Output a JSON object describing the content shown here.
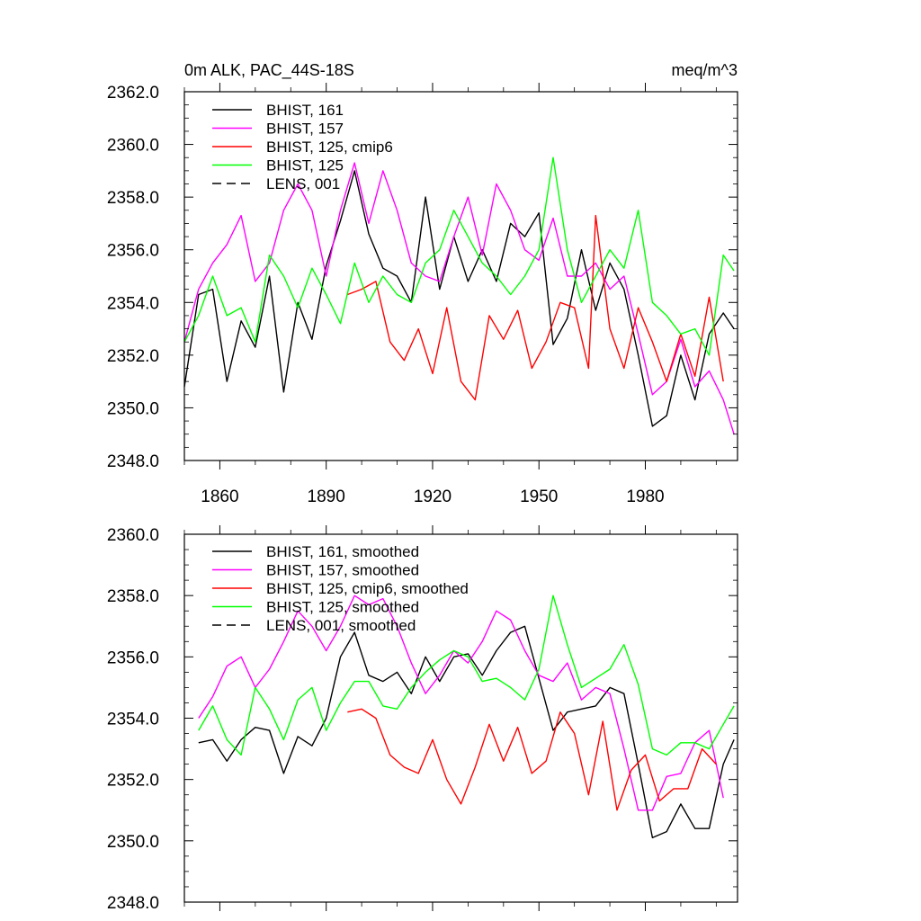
{
  "chart_data": [
    {
      "type": "line",
      "title": "0m ALK, PAC_44S-18S",
      "units_label": "meq/m^3",
      "xlabel": "",
      "ylabel": "",
      "xlim": [
        1850,
        2006
      ],
      "ylim": [
        2348.0,
        2362.0
      ],
      "xticks": [
        1860,
        1890,
        1920,
        1950,
        1980
      ],
      "xtick_labels": [
        "1860",
        "1890",
        "1920",
        "1950",
        "1980"
      ],
      "yticks": [
        2348.0,
        2350.0,
        2352.0,
        2354.0,
        2356.0,
        2358.0,
        2360.0,
        2362.0
      ],
      "ytick_labels": [
        "2348.0",
        "2350.0",
        "2352.0",
        "2354.0",
        "2356.0",
        "2358.0",
        "2360.0",
        "2362.0"
      ],
      "grid": false,
      "legend_position": "top-left",
      "series": [
        {
          "name": "BHIST, 161",
          "color": "#000000",
          "dash": "solid",
          "x": [
            1850,
            1854,
            1858,
            1862,
            1866,
            1870,
            1874,
            1878,
            1882,
            1886,
            1890,
            1894,
            1898,
            1902,
            1906,
            1910,
            1914,
            1918,
            1922,
            1926,
            1930,
            1934,
            1938,
            1942,
            1946,
            1950,
            1954,
            1958,
            1962,
            1966,
            1970,
            1974,
            1978,
            1982,
            1986,
            1990,
            1994,
            1998,
            2002,
            2005
          ],
          "values": [
            2350.8,
            2354.3,
            2354.5,
            2351.0,
            2353.3,
            2352.3,
            2355.0,
            2350.6,
            2354.0,
            2352.6,
            2355.4,
            2357.1,
            2359.0,
            2356.6,
            2355.3,
            2355.0,
            2354.0,
            2358.0,
            2354.5,
            2356.5,
            2354.8,
            2356.0,
            2354.8,
            2357.0,
            2356.5,
            2357.4,
            2352.4,
            2353.4,
            2356.0,
            2353.7,
            2355.5,
            2354.5,
            2352.0,
            2349.3,
            2349.7,
            2352.0,
            2350.3,
            2352.8,
            2353.6,
            2353.0
          ]
        },
        {
          "name": "BHIST, 157",
          "color": "#ff00ff",
          "dash": "solid",
          "x": [
            1850,
            1854,
            1858,
            1862,
            1866,
            1870,
            1874,
            1878,
            1882,
            1886,
            1890,
            1894,
            1898,
            1902,
            1906,
            1910,
            1914,
            1918,
            1922,
            1926,
            1930,
            1934,
            1938,
            1942,
            1946,
            1950,
            1954,
            1958,
            1962,
            1966,
            1970,
            1974,
            1978,
            1982,
            1986,
            1990,
            1994,
            1998,
            2002,
            2005
          ],
          "values": [
            2352.5,
            2354.5,
            2355.5,
            2356.2,
            2357.3,
            2354.8,
            2355.5,
            2357.5,
            2358.5,
            2357.5,
            2355.0,
            2357.5,
            2359.3,
            2357.0,
            2359.0,
            2357.5,
            2355.5,
            2355.0,
            2354.8,
            2356.5,
            2358.0,
            2355.8,
            2358.5,
            2357.5,
            2356.0,
            2355.6,
            2357.2,
            2355.0,
            2355.0,
            2355.5,
            2354.5,
            2355.0,
            2352.8,
            2350.5,
            2351.0,
            2352.6,
            2350.8,
            2351.4,
            2350.3,
            2349.0
          ]
        },
        {
          "name": "BHIST, 125, cmip6",
          "color": "#ff0000",
          "dash": "solid",
          "x": [
            1896,
            1900,
            1904,
            1908,
            1912,
            1916,
            1920,
            1924,
            1928,
            1932,
            1936,
            1940,
            1944,
            1948,
            1952,
            1956,
            1960,
            1964,
            1966,
            1970,
            1974,
            1978,
            1982,
            1986,
            1990,
            1994,
            1998,
            2002
          ],
          "values": [
            2354.3,
            2354.5,
            2354.8,
            2352.5,
            2351.8,
            2353.0,
            2351.3,
            2353.8,
            2351.0,
            2350.3,
            2353.5,
            2352.6,
            2353.7,
            2351.5,
            2352.5,
            2354.0,
            2353.8,
            2351.5,
            2357.3,
            2353.0,
            2351.5,
            2353.8,
            2352.5,
            2351.0,
            2352.8,
            2351.2,
            2354.2,
            2351.0
          ]
        },
        {
          "name": "BHIST, 125",
          "color": "#00ff00",
          "dash": "solid",
          "x": [
            1850,
            1854,
            1858,
            1862,
            1866,
            1870,
            1874,
            1878,
            1882,
            1886,
            1890,
            1894,
            1898,
            1902,
            1906,
            1910,
            1914,
            1918,
            1922,
            1926,
            1930,
            1934,
            1938,
            1942,
            1946,
            1950,
            1954,
            1958,
            1962,
            1966,
            1970,
            1974,
            1978,
            1982,
            1986,
            1990,
            1994,
            1998,
            2002,
            2005
          ],
          "values": [
            2352.5,
            2353.5,
            2355.0,
            2353.5,
            2353.8,
            2352.5,
            2355.8,
            2355.0,
            2353.8,
            2355.3,
            2354.3,
            2353.2,
            2355.5,
            2354.0,
            2355.0,
            2354.3,
            2354.0,
            2355.5,
            2356.0,
            2357.5,
            2356.5,
            2355.5,
            2355.0,
            2354.3,
            2355.0,
            2356.0,
            2359.5,
            2356.0,
            2354.0,
            2355.0,
            2356.0,
            2355.3,
            2357.5,
            2354.0,
            2353.5,
            2352.8,
            2353.0,
            2352.0,
            2355.8,
            2355.2
          ]
        },
        {
          "name": "LENS, 001",
          "color": "#000000",
          "dash": "dashed",
          "x": [],
          "values": []
        }
      ]
    },
    {
      "type": "line",
      "title": "",
      "xlabel": "",
      "ylabel": "",
      "xlim": [
        1850,
        2006
      ],
      "ylim": [
        2348.0,
        2360.0
      ],
      "xticks": [
        1860,
        1890,
        1920,
        1950,
        1980
      ],
      "xtick_labels": [],
      "yticks": [
        2348.0,
        2350.0,
        2352.0,
        2354.0,
        2356.0,
        2358.0,
        2360.0
      ],
      "ytick_labels": [
        "2348.0",
        "2350.0",
        "2352.0",
        "2354.0",
        "2356.0",
        "2358.0",
        "2360.0"
      ],
      "grid": false,
      "legend_position": "top-left",
      "series": [
        {
          "name": "BHIST, 161, smoothed",
          "color": "#000000",
          "dash": "solid",
          "x": [
            1854,
            1858,
            1862,
            1866,
            1870,
            1874,
            1878,
            1882,
            1886,
            1890,
            1894,
            1898,
            1902,
            1906,
            1910,
            1914,
            1918,
            1922,
            1926,
            1930,
            1934,
            1938,
            1942,
            1946,
            1950,
            1954,
            1958,
            1962,
            1966,
            1970,
            1974,
            1978,
            1982,
            1986,
            1990,
            1994,
            1998,
            2002,
            2005
          ],
          "values": [
            2353.2,
            2353.3,
            2352.6,
            2353.3,
            2353.7,
            2353.6,
            2352.2,
            2353.4,
            2353.1,
            2354.0,
            2356.0,
            2356.8,
            2355.4,
            2355.2,
            2355.5,
            2354.8,
            2356.0,
            2355.2,
            2356.0,
            2356.1,
            2355.4,
            2356.2,
            2356.8,
            2357.0,
            2355.3,
            2353.6,
            2354.2,
            2354.3,
            2354.4,
            2355.0,
            2354.8,
            2352.5,
            2350.1,
            2350.3,
            2351.2,
            2350.4,
            2350.4,
            2352.5,
            2353.3
          ]
        },
        {
          "name": "BHIST, 157, smoothed",
          "color": "#ff00ff",
          "dash": "solid",
          "x": [
            1854,
            1858,
            1862,
            1866,
            1870,
            1874,
            1878,
            1882,
            1886,
            1890,
            1894,
            1898,
            1902,
            1906,
            1910,
            1914,
            1918,
            1922,
            1926,
            1930,
            1934,
            1938,
            1942,
            1946,
            1950,
            1954,
            1958,
            1962,
            1966,
            1970,
            1974,
            1978,
            1982,
            1986,
            1990,
            1994,
            1998,
            2002
          ],
          "values": [
            2354.0,
            2354.7,
            2355.7,
            2356.0,
            2355.0,
            2355.6,
            2356.5,
            2357.5,
            2357.0,
            2356.2,
            2357.0,
            2358.0,
            2357.7,
            2357.9,
            2357.0,
            2355.8,
            2354.8,
            2355.4,
            2356.2,
            2355.8,
            2356.5,
            2357.5,
            2357.2,
            2356.2,
            2355.4,
            2355.2,
            2355.8,
            2354.6,
            2355.0,
            2354.8,
            2353.0,
            2351.0,
            2351.0,
            2352.1,
            2352.2,
            2353.2,
            2353.6,
            2351.4
          ]
        },
        {
          "name": "BHIST, 125, cmip6, smoothed",
          "color": "#ff0000",
          "dash": "solid",
          "x": [
            1896,
            1900,
            1904,
            1908,
            1912,
            1916,
            1920,
            1924,
            1928,
            1932,
            1936,
            1940,
            1944,
            1948,
            1952,
            1956,
            1960,
            1964,
            1968,
            1972,
            1976,
            1980,
            1984,
            1988,
            1992,
            1996,
            2000
          ],
          "values": [
            2354.2,
            2354.3,
            2354.0,
            2352.8,
            2352.4,
            2352.2,
            2353.3,
            2352.0,
            2351.2,
            2352.4,
            2353.8,
            2352.6,
            2353.7,
            2352.2,
            2352.6,
            2354.2,
            2353.5,
            2351.5,
            2353.9,
            2351.0,
            2352.3,
            2352.8,
            2351.3,
            2351.7,
            2351.7,
            2353.0,
            2352.5
          ]
        },
        {
          "name": "BHIST, 125, smoothed",
          "color": "#00ff00",
          "dash": "solid",
          "x": [
            1854,
            1858,
            1862,
            1866,
            1870,
            1874,
            1878,
            1882,
            1886,
            1890,
            1894,
            1898,
            1902,
            1906,
            1910,
            1914,
            1918,
            1922,
            1926,
            1930,
            1934,
            1938,
            1942,
            1946,
            1950,
            1954,
            1958,
            1962,
            1966,
            1970,
            1974,
            1978,
            1982,
            1986,
            1990,
            1994,
            1998,
            2002,
            2005
          ],
          "values": [
            2353.6,
            2354.4,
            2353.3,
            2352.8,
            2355.0,
            2354.3,
            2353.3,
            2354.6,
            2355.0,
            2353.6,
            2354.5,
            2355.2,
            2355.2,
            2354.4,
            2354.3,
            2355.0,
            2355.5,
            2355.9,
            2356.2,
            2356.0,
            2355.2,
            2355.3,
            2355.0,
            2354.6,
            2355.6,
            2358.0,
            2356.4,
            2355.0,
            2355.3,
            2355.6,
            2356.4,
            2355.1,
            2353.0,
            2352.8,
            2353.2,
            2353.2,
            2353.0,
            2353.8,
            2354.4
          ]
        },
        {
          "name": "LENS, 001, smoothed",
          "color": "#000000",
          "dash": "dashed",
          "x": [],
          "values": []
        }
      ]
    }
  ]
}
